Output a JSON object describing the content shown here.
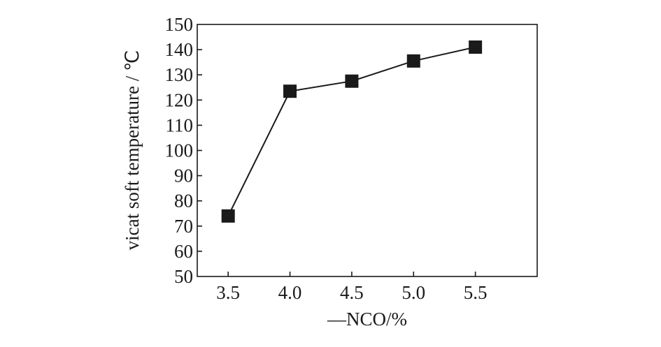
{
  "chart_data": {
    "type": "line",
    "xlabel": "—NCO/%",
    "ylabel": "vicat soft temperature / ℃",
    "x": [
      3.5,
      4.0,
      4.5,
      5.0,
      5.5
    ],
    "x_ticks": [
      "3.5",
      "4.0",
      "4.5",
      "5.0",
      "5.5"
    ],
    "xlim": [
      3.25,
      6.0
    ],
    "y_ticks": [
      "50",
      "60",
      "70",
      "80",
      "90",
      "100",
      "110",
      "120",
      "130",
      "140",
      "150"
    ],
    "ylim": [
      50,
      150
    ],
    "series": [
      {
        "values": [
          74,
          123.5,
          127.5,
          135.5,
          141
        ],
        "marker": "square",
        "color": "#1a1a1a"
      }
    ],
    "grid": false,
    "legend": "none"
  }
}
